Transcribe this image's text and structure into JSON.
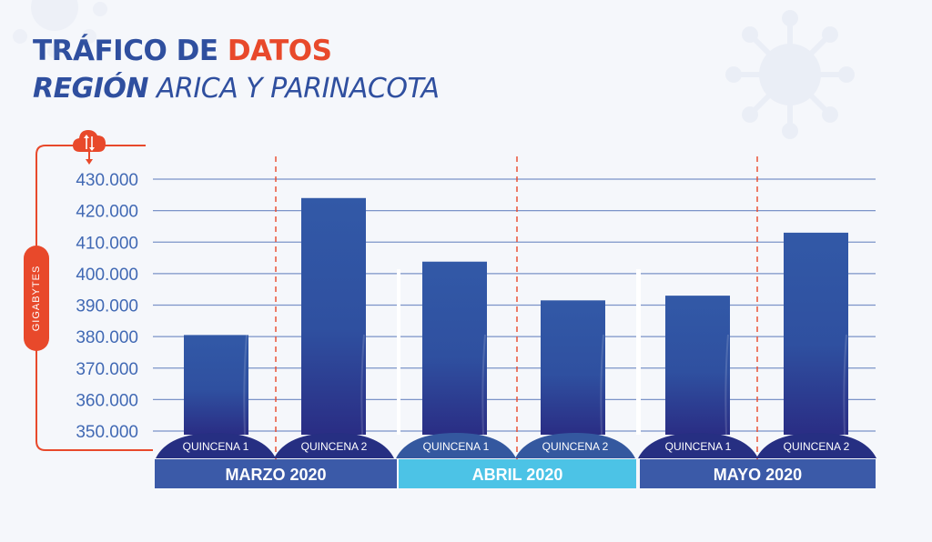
{
  "title": {
    "line1_part1": "TRÁFICO DE ",
    "line1_part2": "DATOS",
    "line2_part1": "REGIÓN",
    "line2_part2": " ARICA Y PARINACOTA"
  },
  "icons": [
    "cloud-transfer-icon",
    "virus-icon"
  ],
  "colors": {
    "bar": "#2f54a5",
    "bar_dark": "#2a2f85",
    "grid": "#7b93c8",
    "accent_red": "#e8492b",
    "month_blue": "#3b5aa8",
    "month_cyan": "#4cc3e6"
  },
  "chart_data": {
    "type": "bar",
    "ylabel": "GIGABYTES",
    "ylim": [
      345000,
      435000
    ],
    "yticks": [
      {
        "value": 350000,
        "label": "350.000"
      },
      {
        "value": 360000,
        "label": "360.000"
      },
      {
        "value": 370000,
        "label": "370.000"
      },
      {
        "value": 380000,
        "label": "380.000"
      },
      {
        "value": 390000,
        "label": "390.000"
      },
      {
        "value": 400000,
        "label": "400.000"
      },
      {
        "value": 410000,
        "label": "410.000"
      },
      {
        "value": 420000,
        "label": "420.000"
      },
      {
        "value": 430000,
        "label": "430.000"
      }
    ],
    "grid": true,
    "groups": [
      {
        "month": "MARZO 2020",
        "categories": [
          "QUINCENA 1",
          "QUINCENA 2"
        ],
        "values": [
          380500,
          424000
        ]
      },
      {
        "month": "ABRIL 2020",
        "categories": [
          "QUINCENA 1",
          "QUINCENA 2"
        ],
        "values": [
          403800,
          391500
        ]
      },
      {
        "month": "MAYO 2020",
        "categories": [
          "QUINCENA 1",
          "QUINCENA 2"
        ],
        "values": [
          393000,
          413000
        ]
      }
    ]
  }
}
